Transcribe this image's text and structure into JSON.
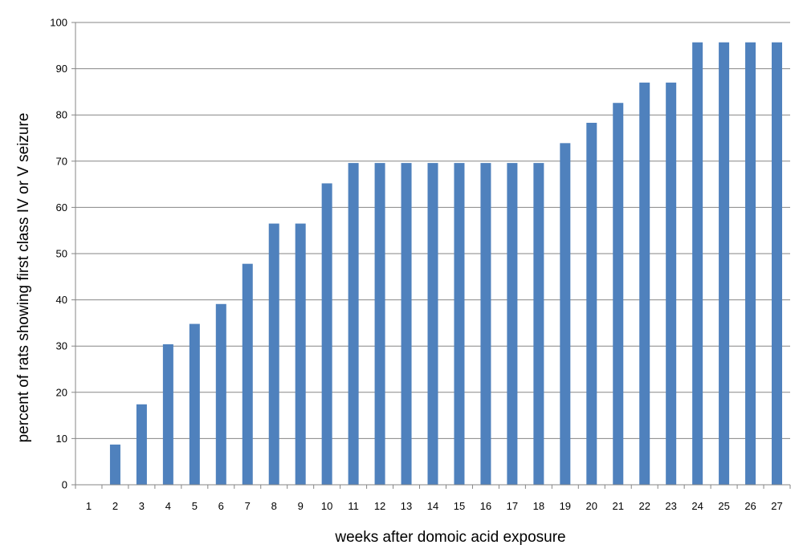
{
  "chart_data": {
    "type": "bar",
    "title": "",
    "xlabel": "weeks after domoic acid exposure",
    "ylabel": "percent of rats showing first class IV or V seizure",
    "categories": [
      "1",
      "2",
      "3",
      "4",
      "5",
      "6",
      "7",
      "8",
      "9",
      "10",
      "11",
      "12",
      "13",
      "14",
      "15",
      "16",
      "17",
      "18",
      "19",
      "20",
      "21",
      "22",
      "23",
      "24",
      "25",
      "26",
      "27"
    ],
    "values": [
      0,
      8.7,
      17.4,
      30.4,
      34.8,
      39.1,
      47.8,
      56.5,
      56.5,
      65.2,
      69.6,
      69.6,
      69.6,
      69.6,
      69.6,
      69.6,
      69.6,
      69.6,
      73.9,
      78.3,
      82.6,
      87.0,
      87.0,
      95.7,
      95.7,
      95.7,
      95.7
    ],
    "ylim": [
      0,
      100
    ],
    "yticks": [
      0,
      10,
      20,
      30,
      40,
      50,
      60,
      70,
      80,
      90,
      100
    ],
    "grid": true,
    "legend": "none",
    "colors": {
      "bar": "#4f81bd",
      "grid": "#868686",
      "axis": "#868686"
    }
  }
}
